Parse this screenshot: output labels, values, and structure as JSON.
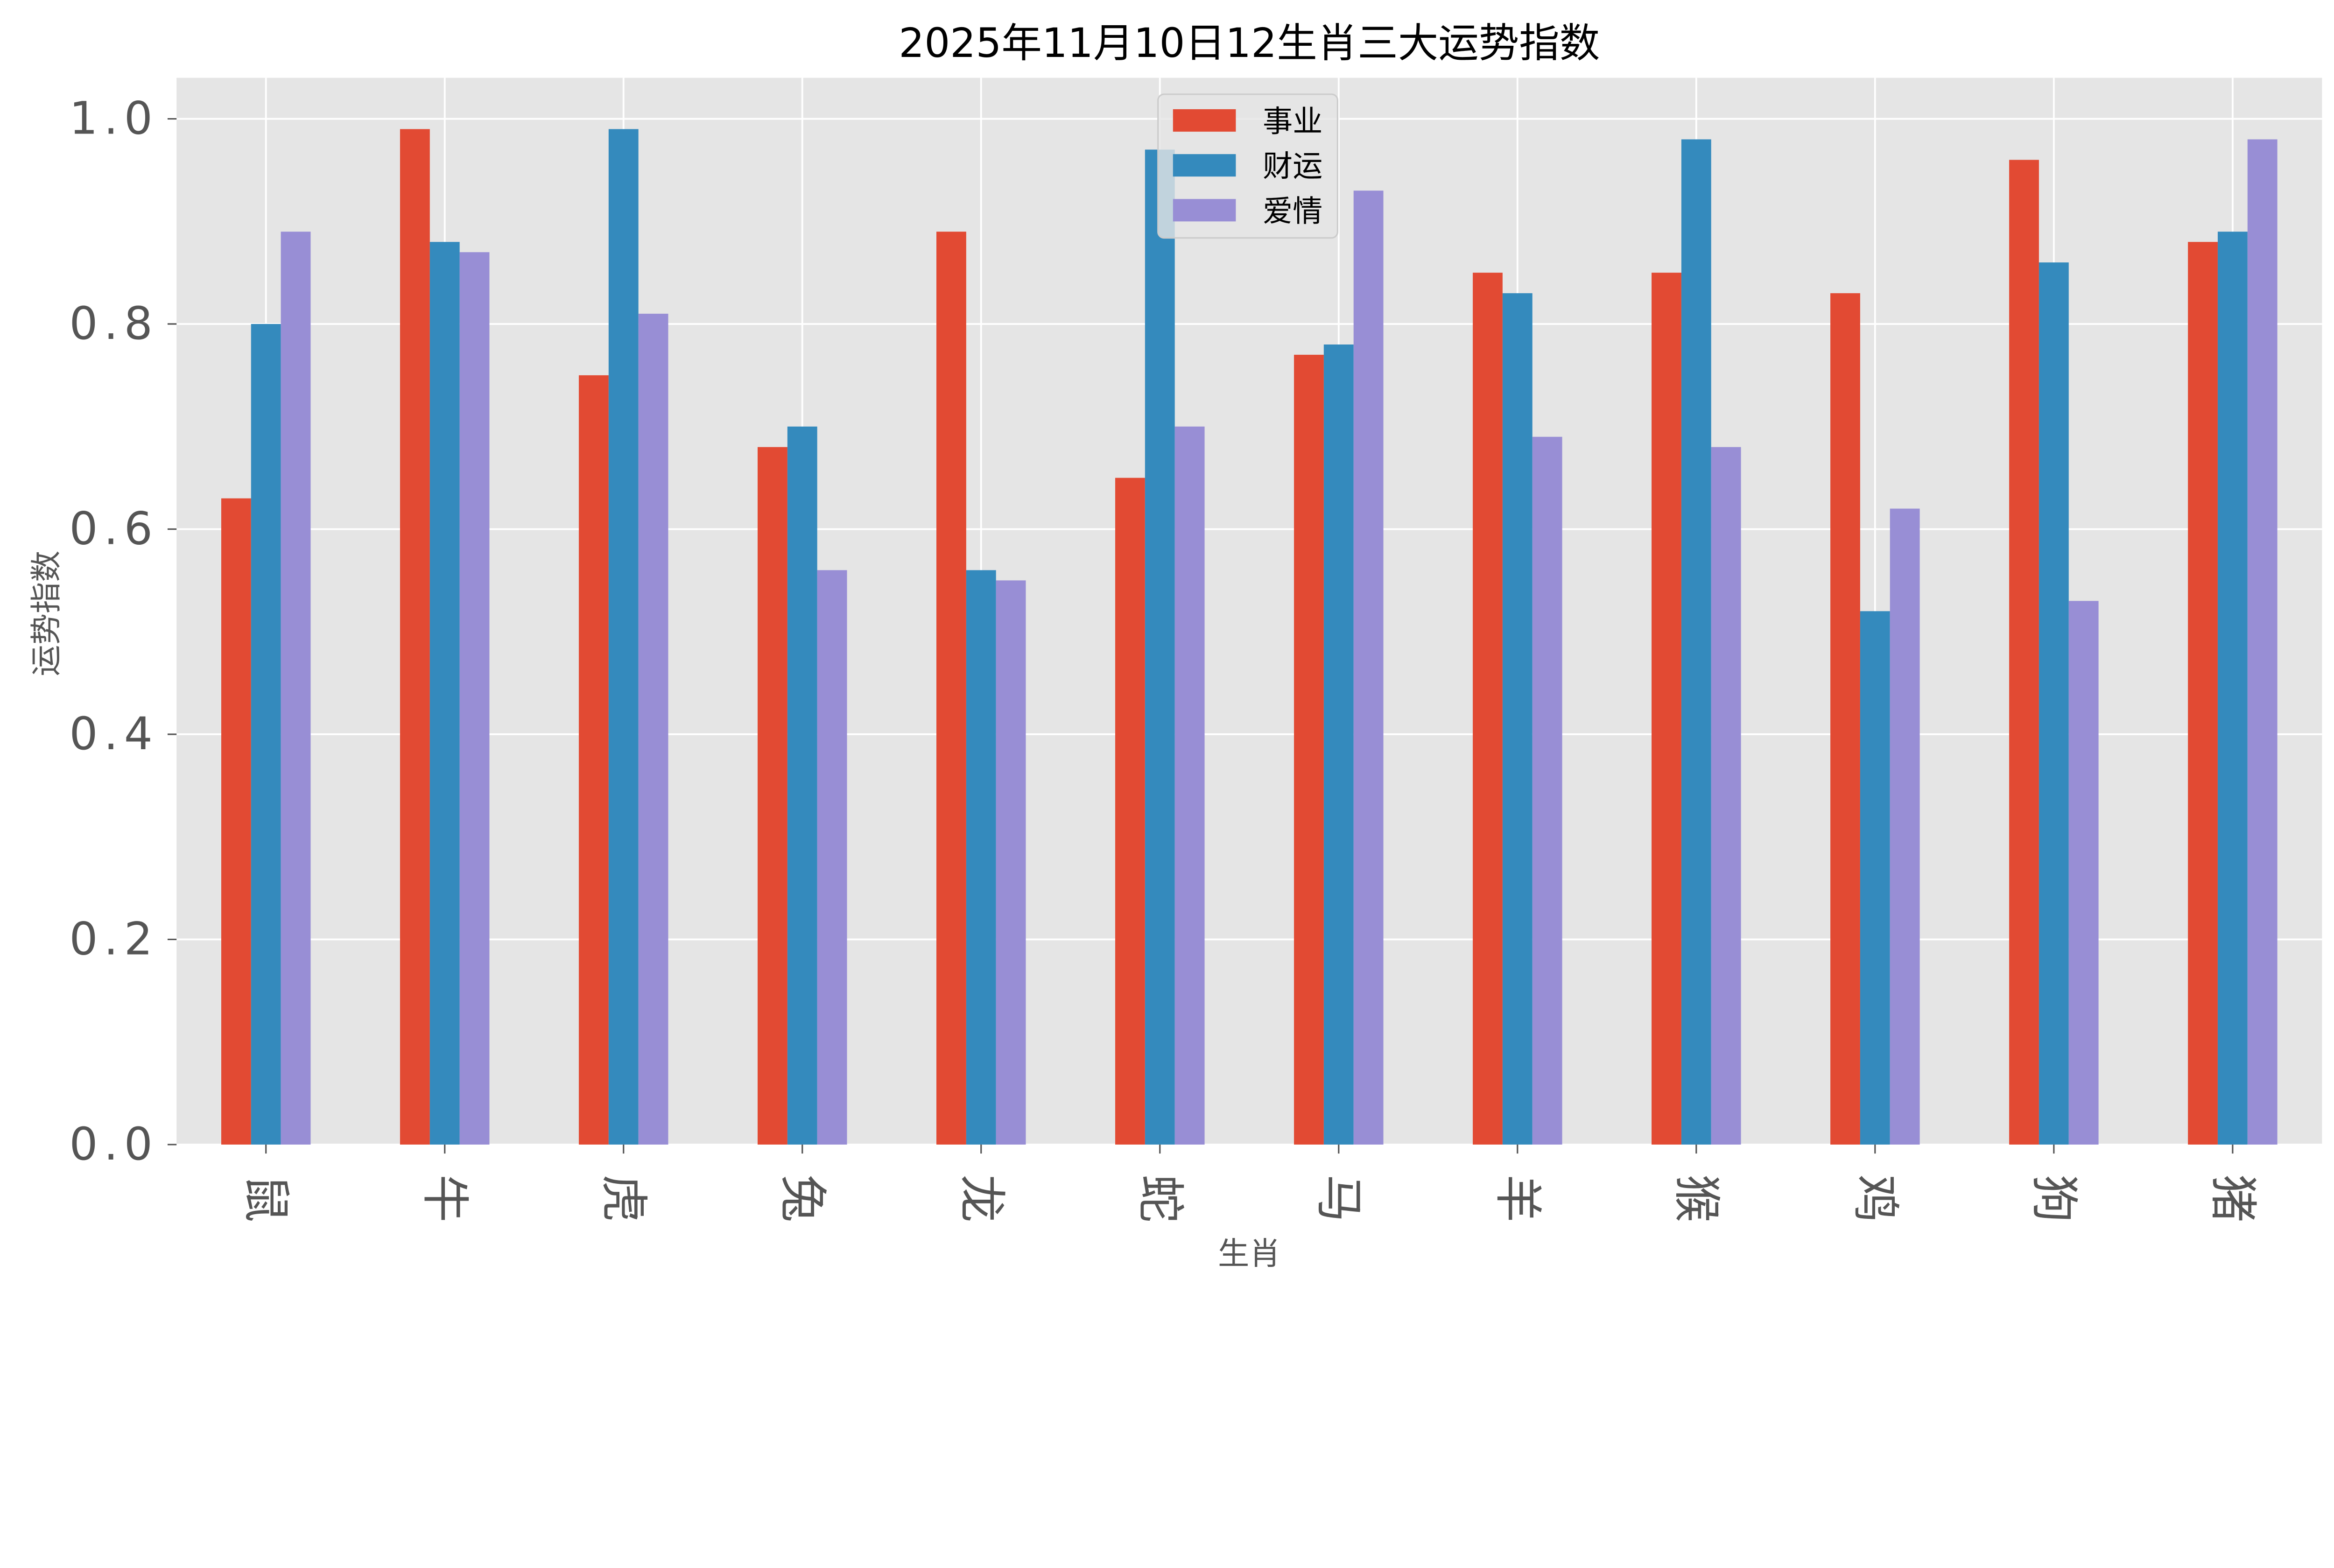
{
  "chart_data": {
    "type": "bar",
    "title": "2025年11月10日12生肖三大运势指数",
    "xlabel": "生肖",
    "ylabel": "运势指数",
    "categories": [
      "鼠",
      "牛",
      "虎",
      "兔",
      "龙",
      "蛇",
      "马",
      "羊",
      "猴",
      "鸡",
      "狗",
      "猪"
    ],
    "series": [
      {
        "name": "事业",
        "color": "#E24A33",
        "values": [
          0.63,
          0.99,
          0.75,
          0.68,
          0.89,
          0.65,
          0.77,
          0.85,
          0.85,
          0.83,
          0.96,
          0.88
        ]
      },
      {
        "name": "财运",
        "color": "#348ABD",
        "values": [
          0.8,
          0.88,
          0.99,
          0.7,
          0.56,
          0.97,
          0.78,
          0.83,
          0.98,
          0.52,
          0.86,
          0.89
        ]
      },
      {
        "name": "爱情",
        "color": "#988ED5",
        "values": [
          0.89,
          0.87,
          0.81,
          0.56,
          0.55,
          0.7,
          0.93,
          0.69,
          0.68,
          0.62,
          0.53,
          0.98
        ]
      }
    ],
    "ylim": [
      0,
      1.04
    ],
    "yticks": [
      "0.0",
      "0.2",
      "0.4",
      "0.6",
      "0.8",
      "1.0"
    ],
    "grid": true,
    "legend_position": "top-center",
    "background_color": "#E5E5E5"
  }
}
